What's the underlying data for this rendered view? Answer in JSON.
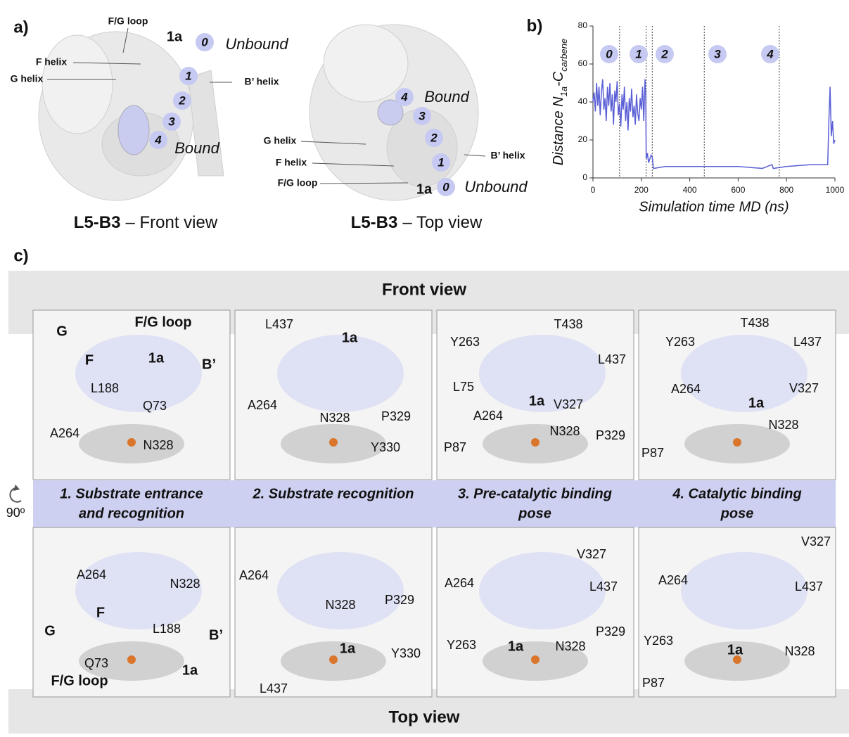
{
  "panel_a": {
    "label": "a)",
    "front": {
      "texts": [
        "F/G loop",
        "1a",
        "F helix",
        "G helix",
        "B’ helix",
        "Unbound",
        "Bound"
      ],
      "states": [
        "0",
        "1",
        "2",
        "3",
        "4"
      ],
      "caption": {
        "bold": "L5-B3",
        "rest": "– Front view"
      }
    },
    "top": {
      "texts": [
        "Bound",
        "G helix",
        "F helix",
        "B’ helix",
        "F/G loop",
        "1a",
        "Unbound"
      ],
      "states": [
        "0",
        "1",
        "2",
        "3",
        "4"
      ],
      "caption": {
        "bold": "L5-B3",
        "rest": "– Top view"
      }
    }
  },
  "chart_data": {
    "type": "line",
    "label": "b)",
    "ylabel": [
      "Distance N",
      "1a",
      "-C",
      "carbene"
    ],
    "xlabel": "Simulation time MD (ns)",
    "x": [
      0,
      5,
      10,
      15,
      20,
      25,
      30,
      35,
      40,
      45,
      50,
      55,
      60,
      65,
      70,
      75,
      80,
      85,
      90,
      95,
      100,
      105,
      110,
      115,
      120,
      125,
      130,
      135,
      140,
      145,
      150,
      155,
      160,
      165,
      170,
      175,
      180,
      185,
      190,
      195,
      200,
      205,
      210,
      215,
      218,
      220,
      225,
      230,
      240,
      245,
      250,
      300,
      400,
      500,
      600,
      700,
      740,
      745,
      800,
      900,
      960,
      970,
      975,
      980,
      985,
      990,
      995,
      1000
    ],
    "values": [
      40,
      45,
      35,
      50,
      38,
      48,
      33,
      45,
      52,
      36,
      42,
      30,
      48,
      38,
      50,
      35,
      44,
      28,
      46,
      40,
      51,
      33,
      39,
      27,
      44,
      36,
      48,
      30,
      40,
      25,
      42,
      35,
      47,
      32,
      38,
      28,
      44,
      34,
      30,
      42,
      36,
      48,
      30,
      52,
      44,
      10,
      13,
      8,
      12,
      11,
      5,
      6,
      6,
      6,
      6,
      5,
      7,
      5,
      6,
      7,
      7,
      7,
      30,
      48,
      22,
      30,
      18,
      20
    ],
    "color": "#5a5fd6",
    "xlim": [
      0,
      1000
    ],
    "ylim": [
      0,
      80
    ],
    "xticks": [
      0,
      200,
      400,
      600,
      800,
      1000
    ],
    "yticks": [
      0,
      20,
      40,
      60,
      80
    ],
    "vlines": [
      110,
      220,
      245,
      460,
      770
    ],
    "annotations": [
      "0",
      "1",
      "2",
      "3",
      "4"
    ]
  },
  "panel_c": {
    "label": "c)",
    "front_view": "Front view",
    "top_view": "Top view",
    "rotation": "90º",
    "steps": [
      [
        "1. Substrate entrance",
        "and recognition"
      ],
      [
        "2. Substrate recognition"
      ],
      [
        "3. Pre-catalytic binding",
        "pose"
      ],
      [
        "4. Catalytic binding",
        "pose"
      ]
    ],
    "front_labels": [
      [
        "G",
        "F/G loop",
        "F",
        "1a",
        "B’",
        "L188",
        "Q73",
        "A264",
        "N328"
      ],
      [
        "L437",
        "1a",
        "P329",
        "A264",
        "N328",
        "Y330"
      ],
      [
        "T438",
        "Y263",
        "L437",
        "L75",
        "V327",
        "1a",
        "A264",
        "N328",
        "P329",
        "P87"
      ],
      [
        "T438",
        "Y263",
        "L437",
        "A264",
        "1a",
        "V327",
        "N328",
        "P87"
      ]
    ],
    "top_labels": [
      [
        "A264",
        "N328",
        "F",
        "G",
        "L188",
        "B’",
        "Q73",
        "1a",
        "F/G loop"
      ],
      [
        "A264",
        "N328",
        "P329",
        "1a",
        "Y330",
        "L437"
      ],
      [
        "V327",
        "A264",
        "L437",
        "P329",
        "Y263",
        "1a",
        "N328"
      ],
      [
        "V327",
        "A264",
        "L437",
        "Y263",
        "1a",
        "N328",
        "P87"
      ]
    ]
  }
}
